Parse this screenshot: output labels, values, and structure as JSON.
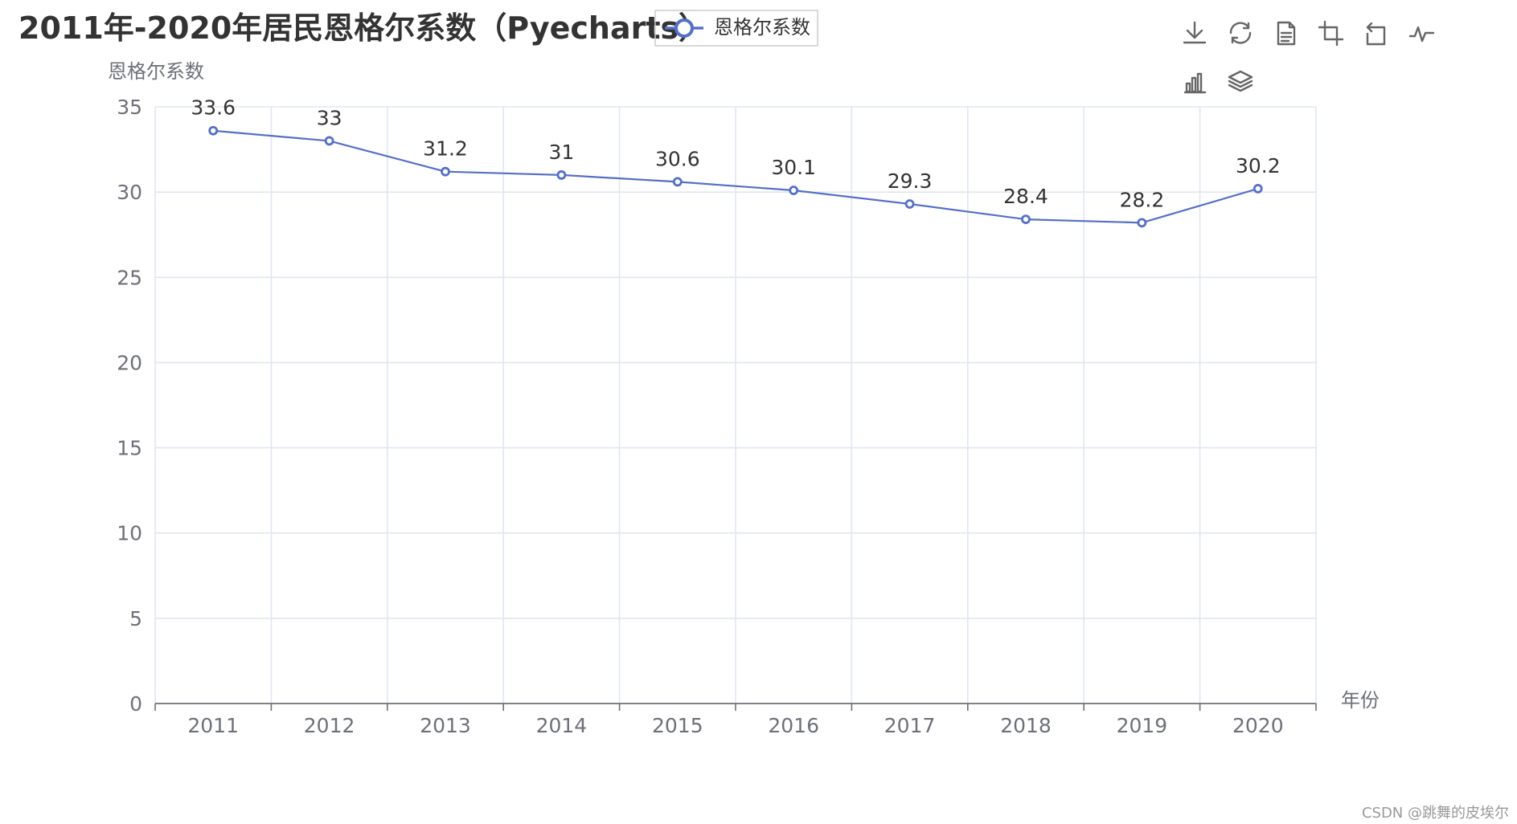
{
  "chart_data": {
    "type": "line",
    "title": "2011年-2020年居民恩格尔系数（Pyecharts）",
    "xlabel": "年份",
    "ylabel": "恩格尔系数",
    "categories": [
      "2011",
      "2012",
      "2013",
      "2014",
      "2015",
      "2016",
      "2017",
      "2018",
      "2019",
      "2020"
    ],
    "series": [
      {
        "name": "恩格尔系数",
        "values": [
          33.6,
          33,
          31.2,
          31,
          30.6,
          30.1,
          29.3,
          28.4,
          28.2,
          30.2
        ],
        "data_labels": [
          "33.6",
          "33",
          "31.2",
          "31",
          "30.6",
          "30.1",
          "29.3",
          "28.4",
          "28.2",
          "30.2"
        ]
      }
    ],
    "ylim": [
      0,
      35
    ],
    "yticks": [
      "0",
      "5",
      "10",
      "15",
      "20",
      "25",
      "30",
      "35"
    ],
    "grid": true,
    "legend_position": "top"
  },
  "colors": {
    "series": "#5470c6",
    "grid": "#e0e6f1",
    "axis": "#6e7079",
    "legend_border": "#cccccc"
  },
  "toolbox": [
    {
      "id": "save",
      "icon": "download-icon"
    },
    {
      "id": "restore",
      "icon": "refresh-icon"
    },
    {
      "id": "data-view",
      "icon": "document-icon"
    },
    {
      "id": "zoom",
      "icon": "area-zoom-icon"
    },
    {
      "id": "zoom-back",
      "icon": "zoom-back-icon"
    },
    {
      "id": "line",
      "icon": "line-chart-icon"
    },
    {
      "id": "bar",
      "icon": "bar-chart-icon"
    },
    {
      "id": "stack",
      "icon": "stack-icon"
    }
  ],
  "watermark": "CSDN @跳舞的皮埃尔"
}
